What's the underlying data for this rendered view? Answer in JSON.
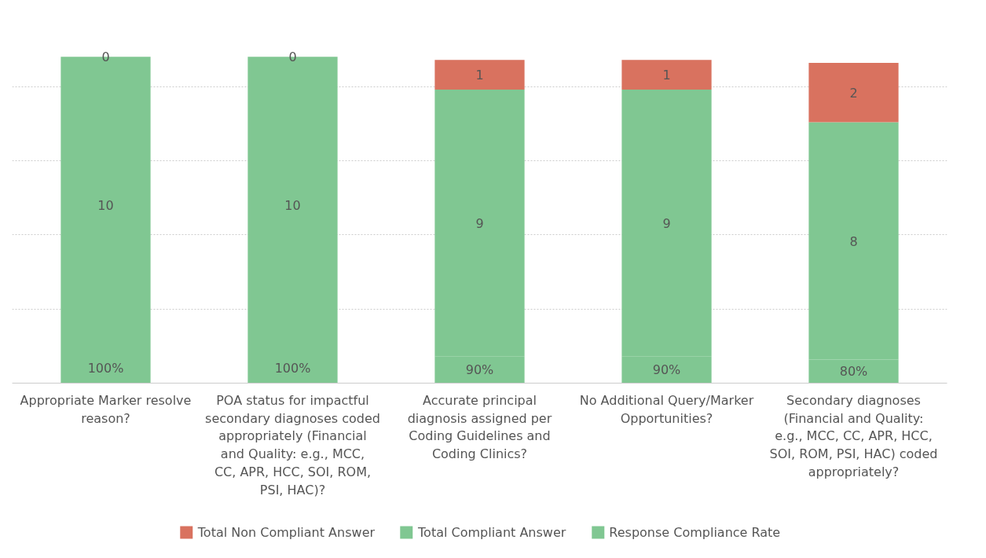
{
  "chart_data": {
    "type": "bar",
    "stacked": true,
    "categories": [
      "Appropriate Marker resolve reason?",
      "POA status for impactful secondary diagnoses coded appropriately (Financial and Quality: e.g., MCC, CC, APR, HCC, SOI, ROM, PSI, HAC)?",
      "Accurate principal diagnosis assigned per Coding Guidelines and Coding Clinics?",
      "No Additional Query/Marker Opportunities?",
      "Secondary diagnoses (Financial and Quality: e.g., MCC, CC, APR, HCC, SOI, ROM, PSI, HAC) coded appropriately?"
    ],
    "series": [
      {
        "name": "Response Compliance Rate",
        "color": "#80c792",
        "values": [
          1.0,
          1.0,
          0.9,
          0.9,
          0.8
        ],
        "value_labels": [
          "100%",
          "100%",
          "90%",
          "90%",
          "80%"
        ]
      },
      {
        "name": "Total Compliant Answer",
        "color": "#80c792",
        "values": [
          10,
          10,
          9,
          9,
          8
        ],
        "value_labels": [
          "10",
          "10",
          "9",
          "9",
          "8"
        ]
      },
      {
        "name": "Total Non Compliant Answer",
        "color": "#d9725f",
        "values": [
          0,
          0,
          1,
          1,
          2
        ],
        "value_labels": [
          "0",
          "0",
          "1",
          "1",
          "2"
        ]
      }
    ],
    "yticks": [
      {
        "value": 0,
        "label": null
      },
      {
        "value": 2.5,
        "label": null
      },
      {
        "value": 5,
        "label": null
      },
      {
        "value": 7.5,
        "label": null
      },
      {
        "value": 10,
        "label": null
      }
    ],
    "grid": "y",
    "tick_labels": "x",
    "legend": "bottom"
  }
}
